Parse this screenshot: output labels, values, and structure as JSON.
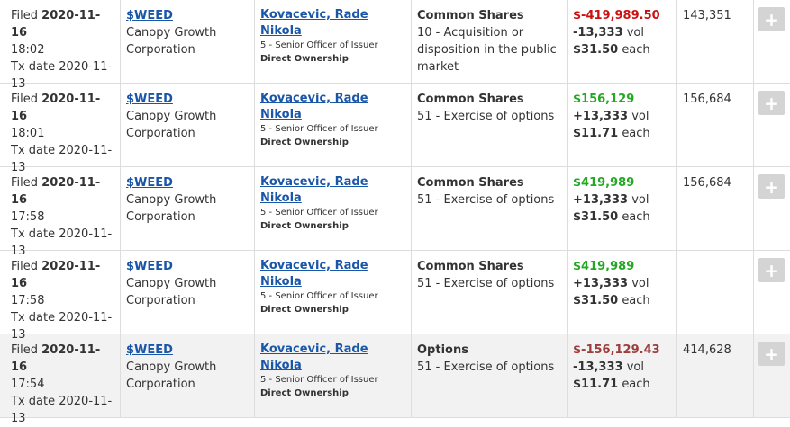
{
  "rows": [
    {
      "filed_prefix": "Filed",
      "filed_date": "2020-11-16",
      "filed_time": "18:02",
      "tx_prefix": "Tx date",
      "tx_date_a": "2020-11-",
      "tx_date_b": "13",
      "ticker": "$WEED",
      "company_a": "Canopy Growth",
      "company_b": "Corporation",
      "insider": "Kovacevic, Rade Nikola",
      "role": "5 - Senior Officer of Issuer",
      "ownership": "Direct Ownership",
      "security": "Common Shares",
      "nature_lines": [
        "10 - Acquisition or",
        "disposition in the public",
        "market"
      ],
      "amount": "$-419,989.50",
      "amount_color": "#cc1111",
      "amount_class": "neg",
      "volume": "-13,333",
      "vol_suffix": "vol",
      "price": "$31.50",
      "price_suffix": "each",
      "holdings": "143,351",
      "shaded": false
    },
    {
      "filed_prefix": "Filed",
      "filed_date": "2020-11-16",
      "filed_time": "18:01",
      "tx_prefix": "Tx date",
      "tx_date_a": "2020-11-",
      "tx_date_b": "13",
      "ticker": "$WEED",
      "company_a": "Canopy Growth",
      "company_b": "Corporation",
      "insider": "Kovacevic, Rade Nikola",
      "role": "5 - Senior Officer of Issuer",
      "ownership": "Direct Ownership",
      "security": "Common Shares",
      "nature_lines": [
        "51 - Exercise of options"
      ],
      "amount": "$156,129",
      "amount_color": "#22a822",
      "amount_class": "pos",
      "volume": "+13,333",
      "vol_suffix": "vol",
      "price": "$11.71",
      "price_suffix": "each",
      "holdings": "156,684",
      "shaded": false
    },
    {
      "filed_prefix": "Filed",
      "filed_date": "2020-11-16",
      "filed_time": "17:58",
      "tx_prefix": "Tx date",
      "tx_date_a": "2020-11-",
      "tx_date_b": "13",
      "ticker": "$WEED",
      "company_a": "Canopy Growth",
      "company_b": "Corporation",
      "insider": "Kovacevic, Rade Nikola",
      "role": "5 - Senior Officer of Issuer",
      "ownership": "Direct Ownership",
      "security": "Common Shares",
      "nature_lines": [
        "51 - Exercise of options"
      ],
      "amount": "$419,989",
      "amount_color": "#22a822",
      "amount_class": "pos",
      "volume": "+13,333",
      "vol_suffix": "vol",
      "price": "$31.50",
      "price_suffix": "each",
      "holdings": "156,684",
      "shaded": false
    },
    {
      "filed_prefix": "Filed",
      "filed_date": "2020-11-16",
      "filed_time": "17:58",
      "tx_prefix": "Tx date",
      "tx_date_a": "2020-11-",
      "tx_date_b": "13",
      "ticker": "$WEED",
      "company_a": "Canopy Growth",
      "company_b": "Corporation",
      "insider": "Kovacevic, Rade Nikola",
      "role": "5 - Senior Officer of Issuer",
      "ownership": "Direct Ownership",
      "security": "Common Shares",
      "nature_lines": [
        "51 - Exercise of options"
      ],
      "amount": "$419,989",
      "amount_color": "#22a822",
      "amount_class": "pos",
      "volume": "+13,333",
      "vol_suffix": "vol",
      "price": "$31.50",
      "price_suffix": "each",
      "holdings": "",
      "shaded": false
    },
    {
      "filed_prefix": "Filed",
      "filed_date": "2020-11-16",
      "filed_time": "17:54",
      "tx_prefix": "Tx date",
      "tx_date_a": "2020-11-",
      "tx_date_b": "13",
      "ticker": "$WEED",
      "company_a": "Canopy Growth",
      "company_b": "Corporation",
      "insider": "Kovacevic, Rade Nikola",
      "role": "5 - Senior Officer of Issuer",
      "ownership": "Direct Ownership",
      "security": "Options",
      "nature_lines": [
        "51 - Exercise of options"
      ],
      "amount": "$-156,129.43",
      "amount_color": "#9c3d3d",
      "amount_class": "neg-dark",
      "volume": "-13,333",
      "vol_suffix": "vol",
      "price": "$11.71",
      "price_suffix": "each",
      "holdings": "414,628",
      "shaded": true
    }
  ],
  "expand_icon": "+",
  "colors": {
    "link": "#1a56a8",
    "positive": "#22a822",
    "negative": "#cc1111",
    "negative_dark": "#9c3d3d",
    "shaded_row": "#f2f2f2"
  }
}
